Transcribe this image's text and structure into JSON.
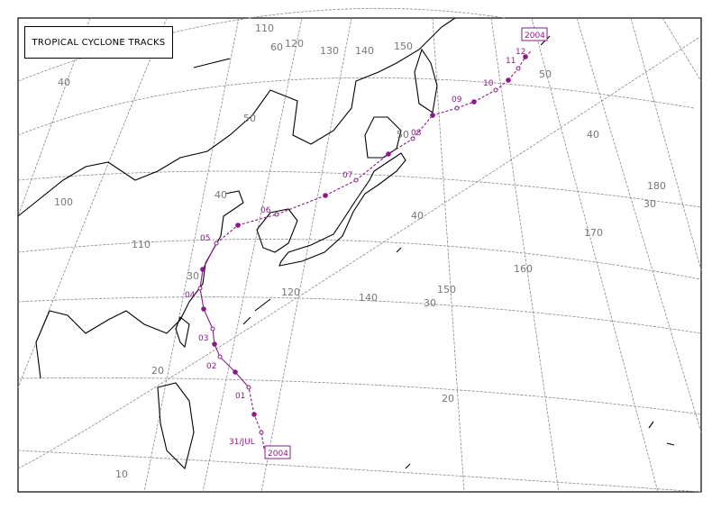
{
  "title": "TROPICAL CYCLONE TRACKS",
  "track_color": "#8a1a8a",
  "track": {
    "year_label": "2004",
    "start_label": "31/JUL",
    "day_labels": [
      "01",
      "02",
      "03",
      "04",
      "05",
      "06",
      "07",
      "08",
      "09",
      "10",
      "11",
      "12"
    ]
  },
  "longitude_labels": [
    "100",
    "110",
    "110",
    "120",
    "120",
    "130",
    "140",
    "140",
    "150",
    "150",
    "160",
    "170",
    "180"
  ],
  "latitude_labels": [
    "10",
    "20",
    "20",
    "30",
    "30",
    "30",
    "40",
    "40",
    "40",
    "40",
    "50",
    "50",
    "50",
    "60"
  ]
}
